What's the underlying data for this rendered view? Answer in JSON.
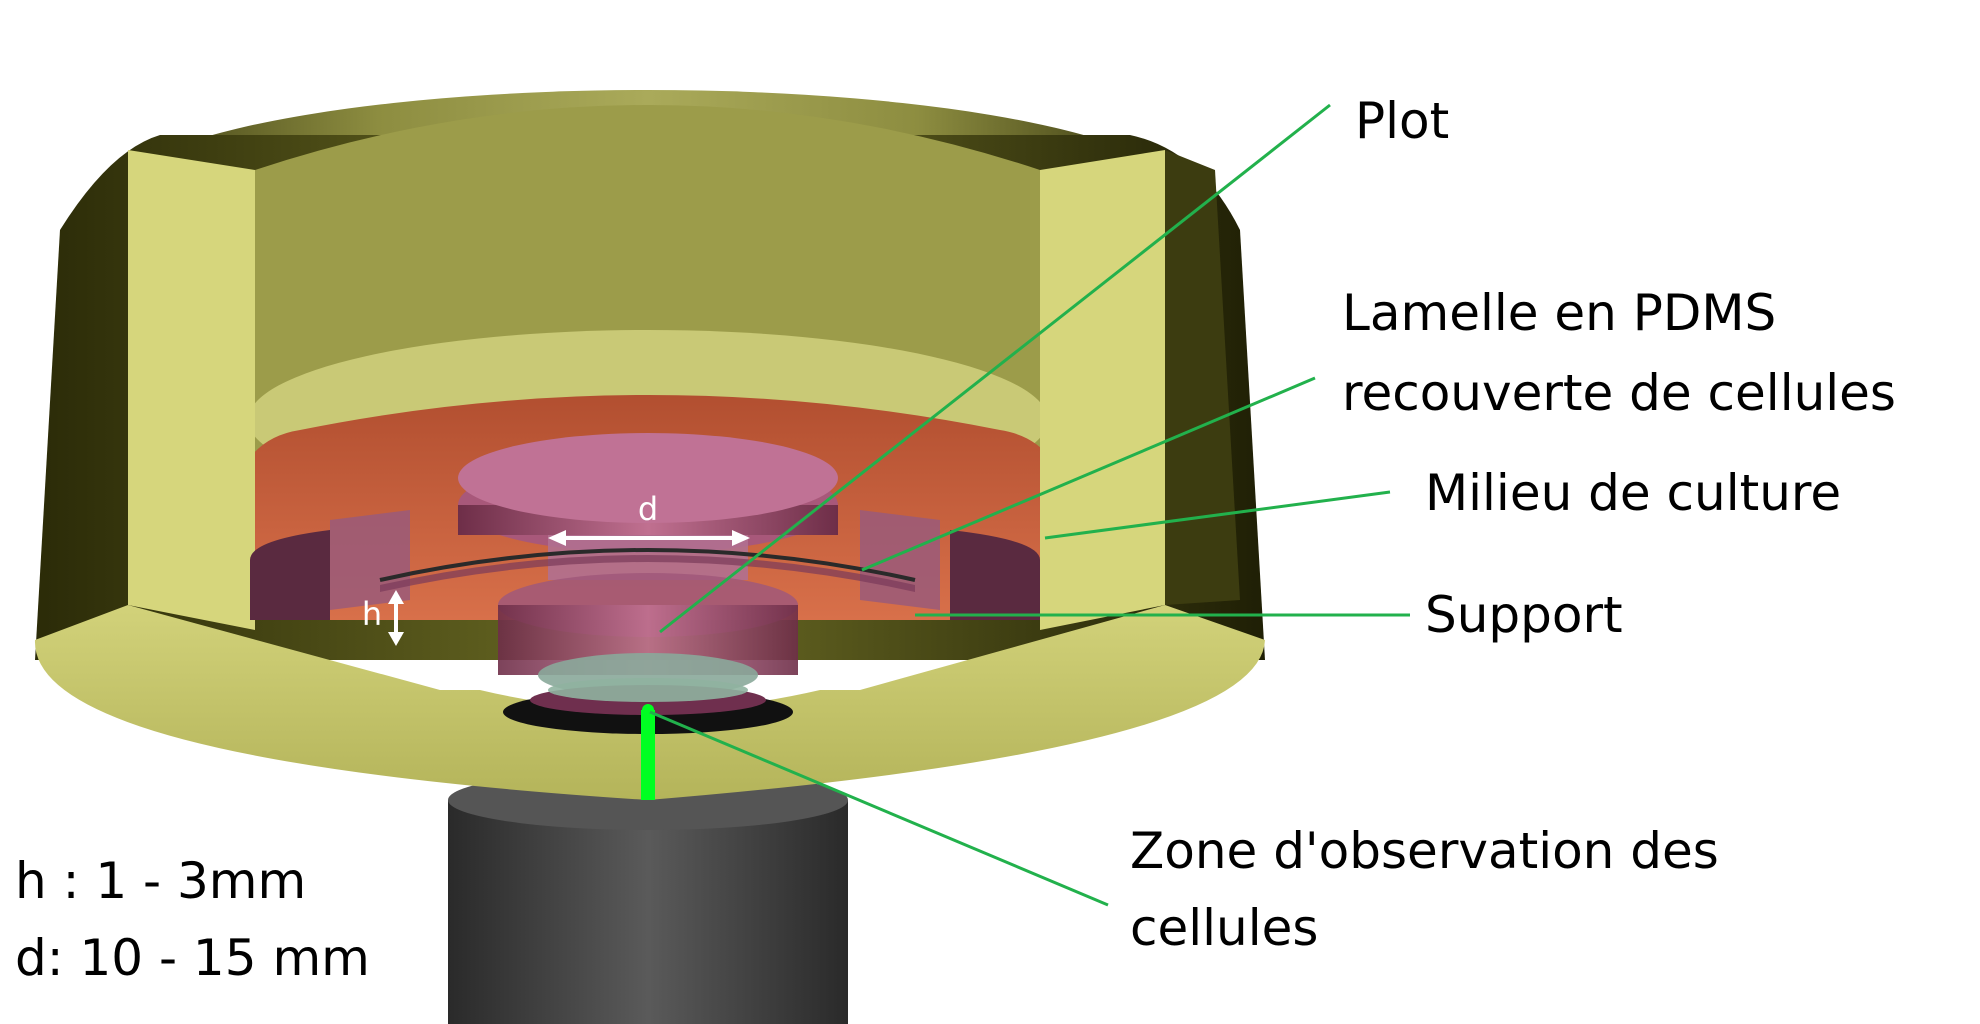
{
  "labels": {
    "plot": "Plot",
    "lamelle_line1": "Lamelle en PDMS",
    "lamelle_line2": "recouverte de cellules",
    "milieu": "Milieu de culture",
    "support": "Support",
    "zone_line1": "Zone d'observation des",
    "zone_line2": "cellules"
  },
  "dimensions": {
    "d_marker": "d",
    "h_marker": "h",
    "h_range": "h : 1 - 3mm",
    "d_range": "d: 10 - 15 mm"
  },
  "colors": {
    "holder": "#c4c46a",
    "holder_dark": "#3f3f10",
    "medium": "#c9623a",
    "pdms": "#b06080",
    "objective": "#4a4a4a",
    "leader": "#22b14c",
    "laser": "#00ff22"
  }
}
